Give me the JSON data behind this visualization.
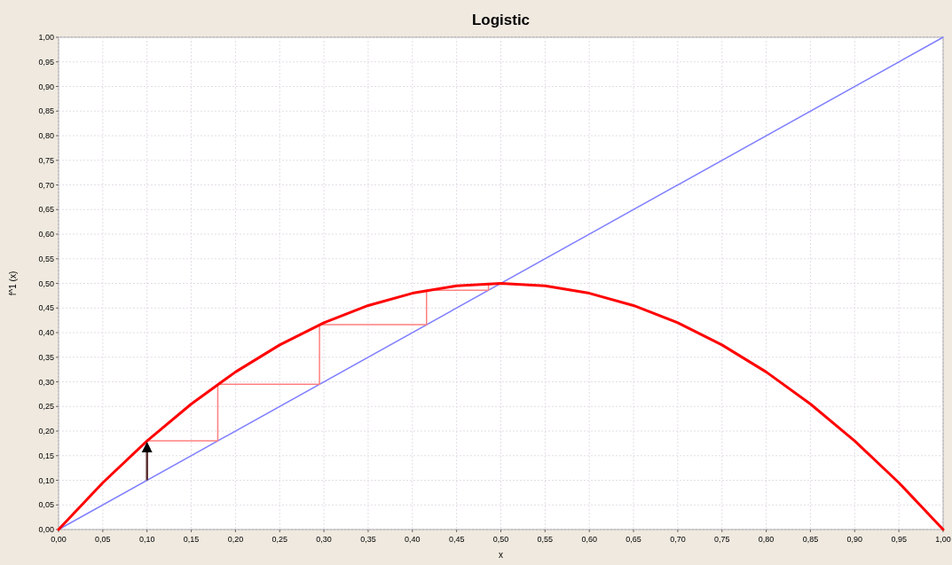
{
  "chart_data": {
    "type": "line",
    "title": "Logistic",
    "xlabel": "x",
    "ylabel": "f^1 (x)",
    "xlim": [
      0,
      1
    ],
    "ylim": [
      0,
      1
    ],
    "xticks": [
      {
        "value": 0,
        "label": "0,00"
      },
      {
        "value": 0.05,
        "label": "0,05"
      },
      {
        "value": 0.1,
        "label": "0,10"
      },
      {
        "value": 0.15,
        "label": "0,15"
      },
      {
        "value": 0.2,
        "label": "0,20"
      },
      {
        "value": 0.25,
        "label": "0,25"
      },
      {
        "value": 0.3,
        "label": "0,30"
      },
      {
        "value": 0.35,
        "label": "0,35"
      },
      {
        "value": 0.4,
        "label": "0,40"
      },
      {
        "value": 0.45,
        "label": "0,45"
      },
      {
        "value": 0.5,
        "label": "0,50"
      },
      {
        "value": 0.55,
        "label": "0,55"
      },
      {
        "value": 0.6,
        "label": "0,60"
      },
      {
        "value": 0.65,
        "label": "0,65"
      },
      {
        "value": 0.7,
        "label": "0,70"
      },
      {
        "value": 0.75,
        "label": "0,75"
      },
      {
        "value": 0.8,
        "label": "0,80"
      },
      {
        "value": 0.85,
        "label": "0,85"
      },
      {
        "value": 0.9,
        "label": "0,90"
      },
      {
        "value": 0.95,
        "label": "0,95"
      },
      {
        "value": 1,
        "label": "1,00"
      }
    ],
    "yticks": [
      {
        "value": 0,
        "label": "0,00"
      },
      {
        "value": 0.05,
        "label": "0,05"
      },
      {
        "value": 0.1,
        "label": "0,10"
      },
      {
        "value": 0.15,
        "label": "0,15"
      },
      {
        "value": 0.2,
        "label": "0,20"
      },
      {
        "value": 0.25,
        "label": "0,25"
      },
      {
        "value": 0.3,
        "label": "0,30"
      },
      {
        "value": 0.35,
        "label": "0,35"
      },
      {
        "value": 0.4,
        "label": "0,40"
      },
      {
        "value": 0.45,
        "label": "0,45"
      },
      {
        "value": 0.5,
        "label": "0,50"
      },
      {
        "value": 0.55,
        "label": "0,55"
      },
      {
        "value": 0.6,
        "label": "0,60"
      },
      {
        "value": 0.65,
        "label": "0,65"
      },
      {
        "value": 0.7,
        "label": "0,70"
      },
      {
        "value": 0.75,
        "label": "0,75"
      },
      {
        "value": 0.8,
        "label": "0,80"
      },
      {
        "value": 0.85,
        "label": "0,85"
      },
      {
        "value": 0.9,
        "label": "0,90"
      },
      {
        "value": 0.95,
        "label": "0,95"
      },
      {
        "value": 1,
        "label": "1,00"
      }
    ],
    "grid": true,
    "marker": "none",
    "line_style": "solid",
    "series": [
      {
        "color": "#8080ff",
        "x": [
          0,
          1
        ],
        "values": [
          0,
          1
        ]
      },
      {
        "color": "#ff8080",
        "x": [
          0.1,
          0.18,
          0.18,
          0.295,
          0.295,
          0.416,
          0.416,
          0.486,
          0.486
        ],
        "values": [
          0.18,
          0.18,
          0.295,
          0.295,
          0.416,
          0.416,
          0.486,
          0.486,
          0.5
        ]
      },
      {
        "color": "#ff0000",
        "x": [
          0,
          0.05,
          0.1,
          0.15,
          0.2,
          0.25,
          0.3,
          0.35,
          0.4,
          0.45,
          0.5,
          0.55,
          0.6,
          0.65,
          0.7,
          0.75,
          0.8,
          0.85,
          0.9,
          0.95,
          1
        ],
        "values": [
          0,
          0.095,
          0.18,
          0.255,
          0.32,
          0.375,
          0.42,
          0.455,
          0.48,
          0.495,
          0.5,
          0.495,
          0.48,
          0.455,
          0.42,
          0.375,
          0.32,
          0.255,
          0.18,
          0.095,
          0
        ]
      }
    ]
  }
}
